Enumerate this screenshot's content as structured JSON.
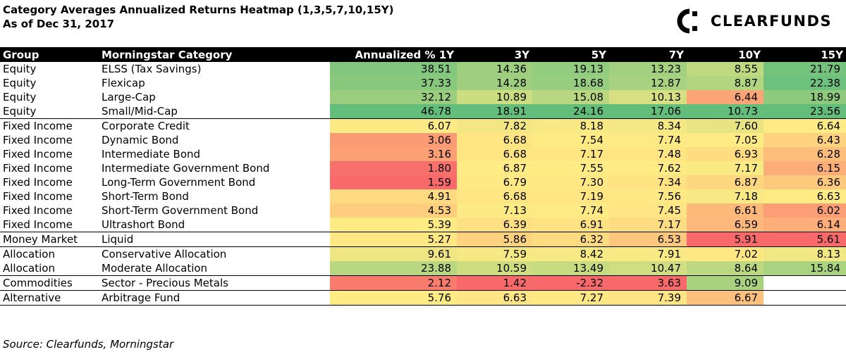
{
  "header": {
    "title_line1": "Category Averages Annualized Returns Heatmap (1,3,5,7,10,15Y)",
    "title_line2": "As of Dec 31, 2017",
    "brand": "CLEARFUNDS"
  },
  "source": "Source: Clearfunds, Morningstar",
  "chart_data": {
    "type": "heatmap",
    "title": "Category Averages Annualized Returns Heatmap (1,3,5,7,10,15Y)",
    "subtitle": "As of Dec 31, 2017",
    "columns": [
      "Group",
      "Morningstar Category",
      "Annualized % 1Y",
      "3Y",
      "5Y",
      "7Y",
      "10Y",
      "15Y"
    ],
    "periods": [
      "1Y",
      "3Y",
      "5Y",
      "7Y",
      "10Y",
      "15Y"
    ],
    "colors": {
      "low": "#f8696b",
      "mid": "#ffeb84",
      "high": "#63be7b"
    },
    "rows": [
      {
        "group": "Equity",
        "category": "ELSS (Tax Savings)",
        "values": [
          "38.51",
          "14.36",
          "19.13",
          "13.23",
          "8.55",
          "21.79"
        ]
      },
      {
        "group": "Equity",
        "category": "Flexicap",
        "values": [
          "37.33",
          "14.28",
          "18.68",
          "12.87",
          "8.87",
          "22.38"
        ]
      },
      {
        "group": "Equity",
        "category": "Large-Cap",
        "values": [
          "32.12",
          "10.89",
          "15.08",
          "10.13",
          "6.44",
          "18.99"
        ]
      },
      {
        "group": "Equity",
        "category": "Small/Mid-Cap",
        "values": [
          "46.78",
          "18.91",
          "24.16",
          "17.06",
          "10.73",
          "23.56"
        ]
      },
      {
        "group": "Fixed Income",
        "category": "Corporate Credit",
        "values": [
          "6.07",
          "7.82",
          "8.18",
          "8.34",
          "7.60",
          "6.64"
        ]
      },
      {
        "group": "Fixed Income",
        "category": "Dynamic Bond",
        "values": [
          "3.06",
          "6.68",
          "7.54",
          "7.74",
          "7.05",
          "6.43"
        ]
      },
      {
        "group": "Fixed Income",
        "category": "Intermediate Bond",
        "values": [
          "3.16",
          "6.68",
          "7.17",
          "7.48",
          "6.93",
          "6.28"
        ]
      },
      {
        "group": "Fixed Income",
        "category": "Intermediate Government Bond",
        "values": [
          "1.80",
          "6.87",
          "7.55",
          "7.62",
          "7.17",
          "6.15"
        ]
      },
      {
        "group": "Fixed Income",
        "category": "Long-Term Government Bond",
        "values": [
          "1.59",
          "6.79",
          "7.30",
          "7.34",
          "6.87",
          "6.36"
        ]
      },
      {
        "group": "Fixed Income",
        "category": "Short-Term Bond",
        "values": [
          "4.91",
          "6.68",
          "7.19",
          "7.56",
          "7.18",
          "6.63"
        ]
      },
      {
        "group": "Fixed Income",
        "category": "Short-Term Government Bond",
        "values": [
          "4.53",
          "7.13",
          "7.74",
          "7.45",
          "6.61",
          "6.02"
        ]
      },
      {
        "group": "Fixed Income",
        "category": "Ultrashort Bond",
        "values": [
          "5.39",
          "6.39",
          "6.91",
          "7.17",
          "6.59",
          "6.14"
        ]
      },
      {
        "group": "Money Market",
        "category": "Liquid",
        "values": [
          "5.27",
          "5.86",
          "6.32",
          "6.53",
          "5.91",
          "5.61"
        ]
      },
      {
        "group": "Allocation",
        "category": "Conservative Allocation",
        "values": [
          "9.61",
          "7.59",
          "8.42",
          "7.91",
          "7.02",
          "8.13"
        ]
      },
      {
        "group": "Allocation",
        "category": "Moderate Allocation",
        "values": [
          "23.88",
          "10.59",
          "13.49",
          "10.47",
          "8.64",
          "15.84"
        ]
      },
      {
        "group": "Commodities",
        "category": "Sector - Precious Metals",
        "values": [
          "2.12",
          "1.42",
          "-2.32",
          "3.63",
          "9.09",
          ""
        ]
      },
      {
        "group": "Alternative",
        "category": "Arbitrage Fund",
        "values": [
          "5.76",
          "6.63",
          "7.27",
          "7.39",
          "6.67",
          ""
        ]
      }
    ]
  }
}
